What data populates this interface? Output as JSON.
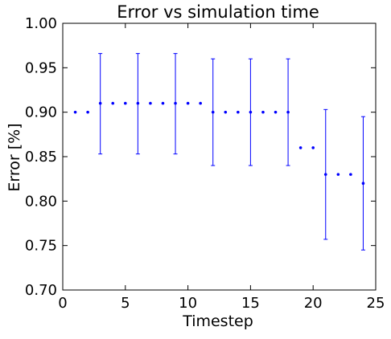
{
  "chart_data": {
    "type": "scatter",
    "title": "Error vs simulation time",
    "xlabel": "Timestep",
    "ylabel": "Error [%]",
    "xlim": [
      0,
      25
    ],
    "ylim": [
      0.7,
      1.0
    ],
    "grid": false,
    "xticks": [
      0,
      5,
      10,
      15,
      20,
      25
    ],
    "xtick_labels": [
      "0",
      "5",
      "10",
      "15",
      "20",
      "25"
    ],
    "yticks": [
      0.7,
      0.75,
      0.8,
      0.85,
      0.9,
      0.95,
      1.0
    ],
    "ytick_labels": [
      "0.70",
      "0.75",
      "0.80",
      "0.85",
      "0.90",
      "0.95",
      "1.00"
    ],
    "series": [
      {
        "color": "#0000ff",
        "points": [
          {
            "x": 1,
            "y": 0.9
          },
          {
            "x": 2,
            "y": 0.9
          },
          {
            "x": 3,
            "y": 0.91,
            "err_low": 0.853,
            "err_high": 0.966
          },
          {
            "x": 4,
            "y": 0.91
          },
          {
            "x": 5,
            "y": 0.91
          },
          {
            "x": 6,
            "y": 0.91,
            "err_low": 0.853,
            "err_high": 0.966
          },
          {
            "x": 7,
            "y": 0.91
          },
          {
            "x": 8,
            "y": 0.91
          },
          {
            "x": 9,
            "y": 0.91,
            "err_low": 0.853,
            "err_high": 0.966
          },
          {
            "x": 10,
            "y": 0.91
          },
          {
            "x": 11,
            "y": 0.91
          },
          {
            "x": 12,
            "y": 0.9,
            "err_low": 0.84,
            "err_high": 0.96
          },
          {
            "x": 13,
            "y": 0.9
          },
          {
            "x": 14,
            "y": 0.9
          },
          {
            "x": 15,
            "y": 0.9,
            "err_low": 0.84,
            "err_high": 0.96
          },
          {
            "x": 16,
            "y": 0.9
          },
          {
            "x": 17,
            "y": 0.9
          },
          {
            "x": 18,
            "y": 0.9,
            "err_low": 0.84,
            "err_high": 0.96
          },
          {
            "x": 19,
            "y": 0.86
          },
          {
            "x": 20,
            "y": 0.86
          },
          {
            "x": 21,
            "y": 0.83,
            "err_low": 0.757,
            "err_high": 0.903
          },
          {
            "x": 22,
            "y": 0.83
          },
          {
            "x": 23,
            "y": 0.83
          },
          {
            "x": 24,
            "y": 0.82,
            "err_low": 0.745,
            "err_high": 0.895
          }
        ]
      }
    ]
  }
}
